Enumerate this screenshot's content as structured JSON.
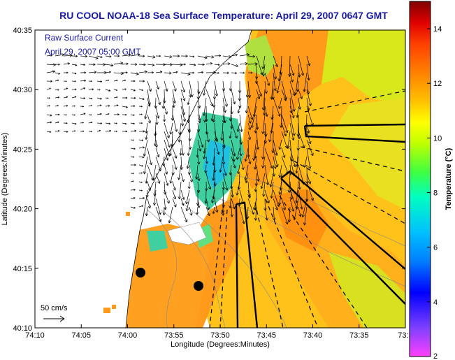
{
  "header": {
    "title": "RU COOL  NOAA-18  Sea Surface Temperature:  April 29, 2007 0647 GMT"
  },
  "map": {
    "legend_line1": "Raw Surface Current",
    "legend_line2": "April 29, 2007 05:00 GMT",
    "scale_label": "50 cm/s",
    "x_axis_label": "Longitude (Degrees:Minutes)",
    "y_axis_label": "Latitude (Degrees:Minutes)",
    "x_ticks": [
      "74:10",
      "74:05",
      "74:00",
      "73:55",
      "73:50",
      "73:45",
      "73:40",
      "73:35",
      "73:3"
    ],
    "y_ticks": [
      "40:35",
      "40:30",
      "40:25",
      "40:20",
      "40:15",
      "40:10"
    ]
  },
  "colorbar": {
    "label": "Temperature (°C)",
    "ticks": [
      "14",
      "12",
      "10",
      "8",
      "6",
      "4",
      "2"
    ],
    "range": [
      2,
      15
    ],
    "colors": [
      "#ff40ff",
      "#8040ff",
      "#0000ff",
      "#0080ff",
      "#00c0ff",
      "#00ffc0",
      "#40ff40",
      "#c0ff00",
      "#ffff00",
      "#ffc000",
      "#ff8000",
      "#ff4000",
      "#e00000",
      "#800000"
    ]
  },
  "colors": {
    "land": "#ffffff",
    "sst_warm": "#ff9a1a",
    "sst_mid": "#ffc21a",
    "sst_cool": "#d8e81a",
    "sst_cold": "#40d0a0",
    "title": "#1a1aa0"
  }
}
